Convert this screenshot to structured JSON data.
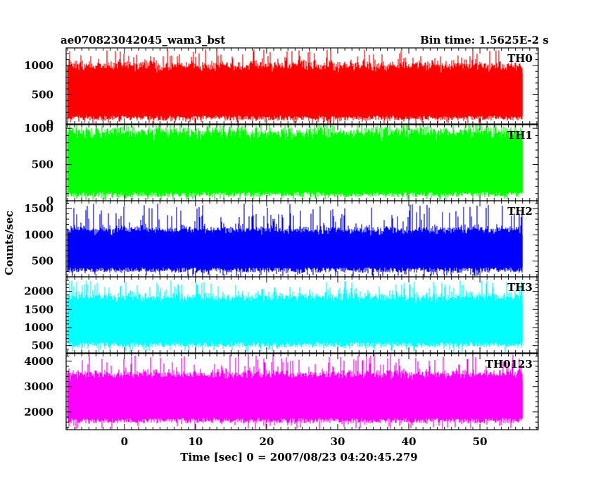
{
  "header": {
    "left_title": "ae070823042045_wam3_bst",
    "right_title": "Bin time: 1.5625E-2 s"
  },
  "chart_data": {
    "type": "line",
    "ylabel": "Counts/sec",
    "xlabel": "Time [sec] 0 = 2007/08/23 04:20:45.279",
    "xlim": [
      -8.2,
      58.2
    ],
    "x_data_range": [
      -8,
      56
    ],
    "bin_time_s": 0.015625,
    "x_ticks": [
      0,
      10,
      20,
      30,
      40,
      50
    ],
    "grid": false,
    "panels": [
      {
        "name": "TH0",
        "color": "#ff0000",
        "ylim": [
          0,
          1300
        ],
        "y_ticks": [
          0,
          500,
          1000
        ],
        "baseline_band": [
          60,
          140
        ],
        "typical_range": [
          150,
          1000
        ],
        "peak_max": 1280
      },
      {
        "name": "TH1",
        "color": "#00ff00",
        "ylim": [
          0,
          1050
        ],
        "y_ticks": [
          0,
          500,
          1000
        ],
        "baseline_band": [
          50,
          120
        ],
        "typical_range": [
          100,
          950
        ],
        "peak_max": 1050
      },
      {
        "name": "TH2",
        "color": "#0000ff",
        "ylim": [
          200,
          1650
        ],
        "y_ticks": [
          500,
          1000,
          1500
        ],
        "baseline_band": [
          280,
          380
        ],
        "typical_range": [
          380,
          1100
        ],
        "peak_max": 1600
      },
      {
        "name": "TH3",
        "color": "#00ffff",
        "ylim": [
          300,
          2400
        ],
        "y_ticks": [
          500,
          1000,
          1500,
          2000
        ],
        "baseline_band": [
          450,
          600
        ],
        "typical_range": [
          600,
          1850
        ],
        "peak_max": 2300
      },
      {
        "name": "TH0123",
        "color": "#ff00ff",
        "ylim": [
          1300,
          4300
        ],
        "y_ticks": [
          2000,
          3000,
          4000
        ],
        "baseline_band": [
          1550,
          1750
        ],
        "typical_range": [
          1750,
          3500
        ],
        "peak_max": 4300
      }
    ]
  }
}
